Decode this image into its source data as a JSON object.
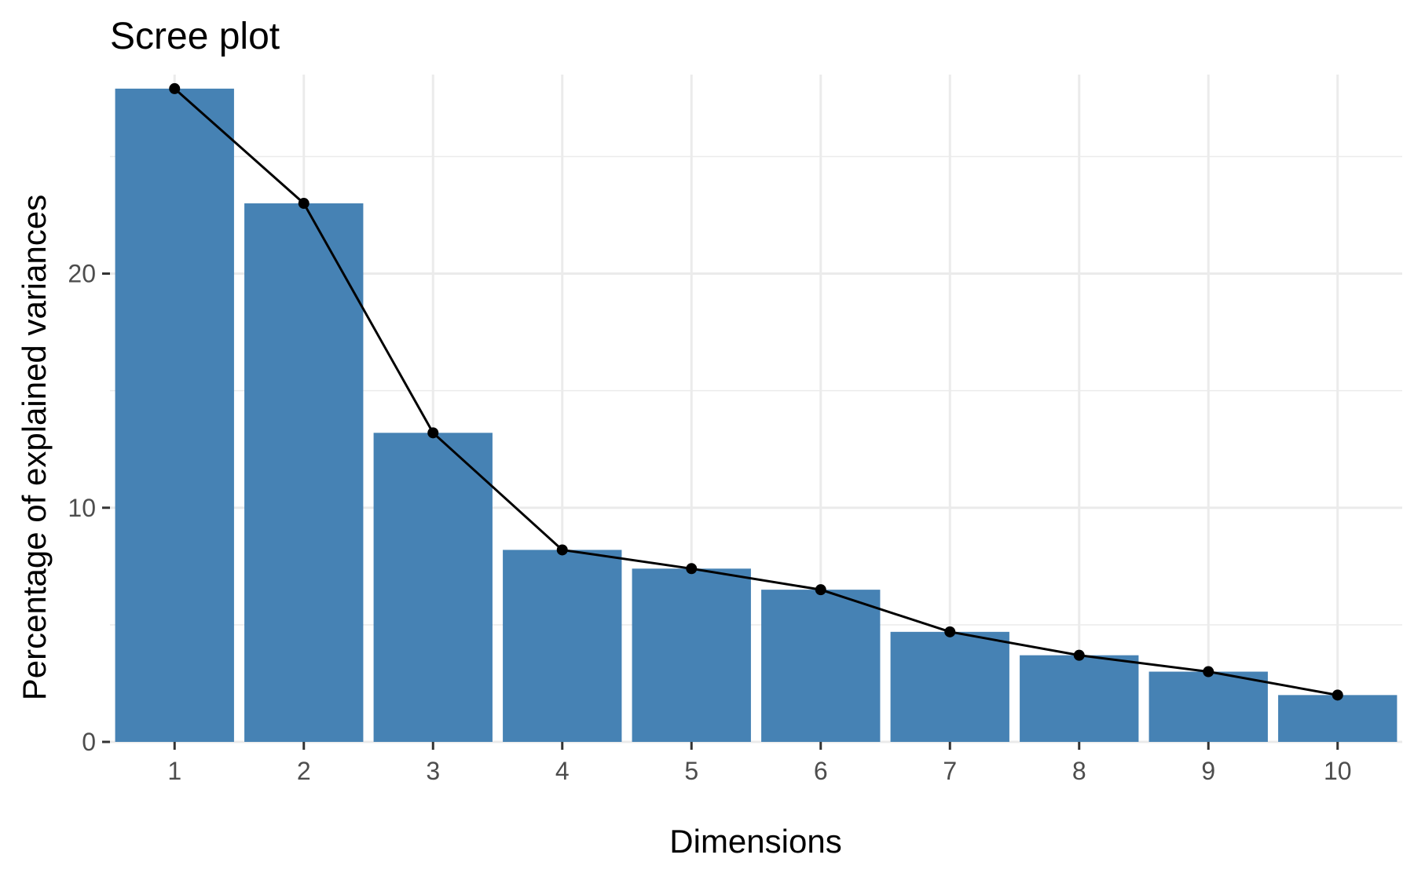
{
  "chart_data": {
    "type": "bar",
    "title": "Scree plot",
    "xlabel": "Dimensions",
    "ylabel": "Percentage of explained variances",
    "categories": [
      "1",
      "2",
      "3",
      "4",
      "5",
      "6",
      "7",
      "8",
      "9",
      "10"
    ],
    "values": [
      27.9,
      23.0,
      13.2,
      8.2,
      7.4,
      6.5,
      4.7,
      3.7,
      3.0,
      2.0
    ],
    "line_overlay": true,
    "ylim": [
      0,
      28.5
    ],
    "y_ticks": [
      "0",
      "10",
      "20"
    ],
    "grid": true,
    "legend": "none",
    "colors": {
      "bar": "#4682B4",
      "line": "#000000"
    }
  }
}
